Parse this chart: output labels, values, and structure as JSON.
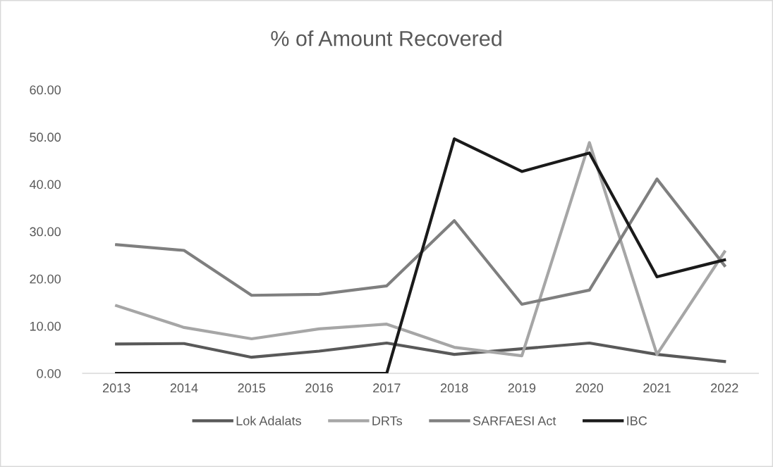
{
  "chart_data": {
    "type": "line",
    "title": "% of Amount Recovered",
    "categories": [
      "2013",
      "2014",
      "2015",
      "2016",
      "2017",
      "2018",
      "2019",
      "2020",
      "2021",
      "2022"
    ],
    "series": [
      {
        "name": "Lok Adalats",
        "color": "#595959",
        "values": [
          6.2,
          6.3,
          3.4,
          4.7,
          6.4,
          4.0,
          5.2,
          6.4,
          4.0,
          2.5
        ]
      },
      {
        "name": "DRTs",
        "color": "#a6a6a6",
        "values": [
          14.3,
          9.7,
          7.3,
          9.4,
          10.4,
          5.5,
          3.7,
          48.8,
          4.0,
          25.7
        ]
      },
      {
        "name": "SARFAESI Act",
        "color": "#7f7f7f",
        "values": [
          27.2,
          26.0,
          16.5,
          16.7,
          18.5,
          32.3,
          14.6,
          17.6,
          41.1,
          22.8
        ]
      },
      {
        "name": "IBC",
        "color": "#1a1a1a",
        "values": [
          0,
          0,
          0,
          0,
          0,
          49.6,
          42.7,
          46.6,
          20.4,
          24.0
        ]
      }
    ],
    "ylim": [
      0,
      60
    ],
    "yticks": [
      {
        "value": 0,
        "label": "0.00"
      },
      {
        "value": 10,
        "label": "10.00"
      },
      {
        "value": 20,
        "label": "20.00"
      },
      {
        "value": 30,
        "label": "30.00"
      },
      {
        "value": 40,
        "label": "40.00"
      },
      {
        "value": 50,
        "label": "50.00"
      },
      {
        "value": 60,
        "label": "60.00"
      }
    ],
    "grid": false,
    "legend": "bottom",
    "marker": "none",
    "line_style": "solid"
  }
}
